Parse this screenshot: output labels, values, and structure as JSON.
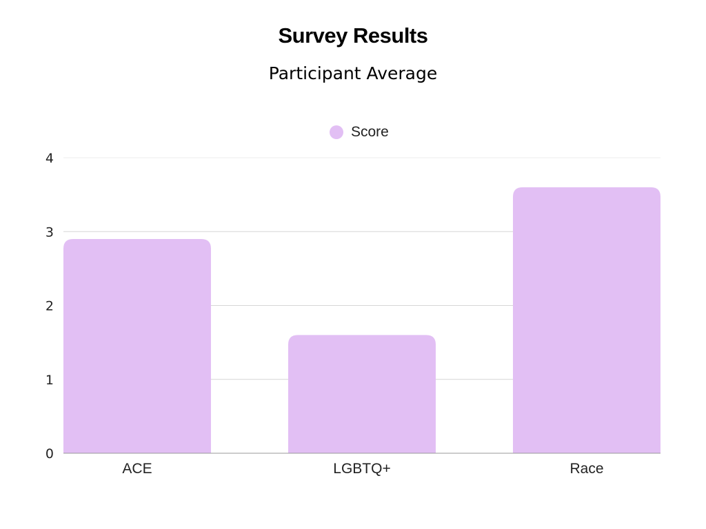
{
  "colors": {
    "bar": "#e2bff4",
    "grid": "#d6d6d6",
    "axis": "#9a9a9a"
  },
  "chart_data": {
    "type": "bar",
    "title": "Survey Results",
    "subtitle": "Participant Average",
    "categories": [
      "ACE",
      "LGBTQ+",
      "Race"
    ],
    "series": [
      {
        "name": "Score",
        "values": [
          2.9,
          1.6,
          3.6
        ]
      }
    ],
    "ylim": [
      0,
      4
    ],
    "yticks": [
      0,
      1,
      2,
      3,
      4
    ],
    "grid": true,
    "legend_position": "top-center",
    "xlabel": "",
    "ylabel": ""
  }
}
